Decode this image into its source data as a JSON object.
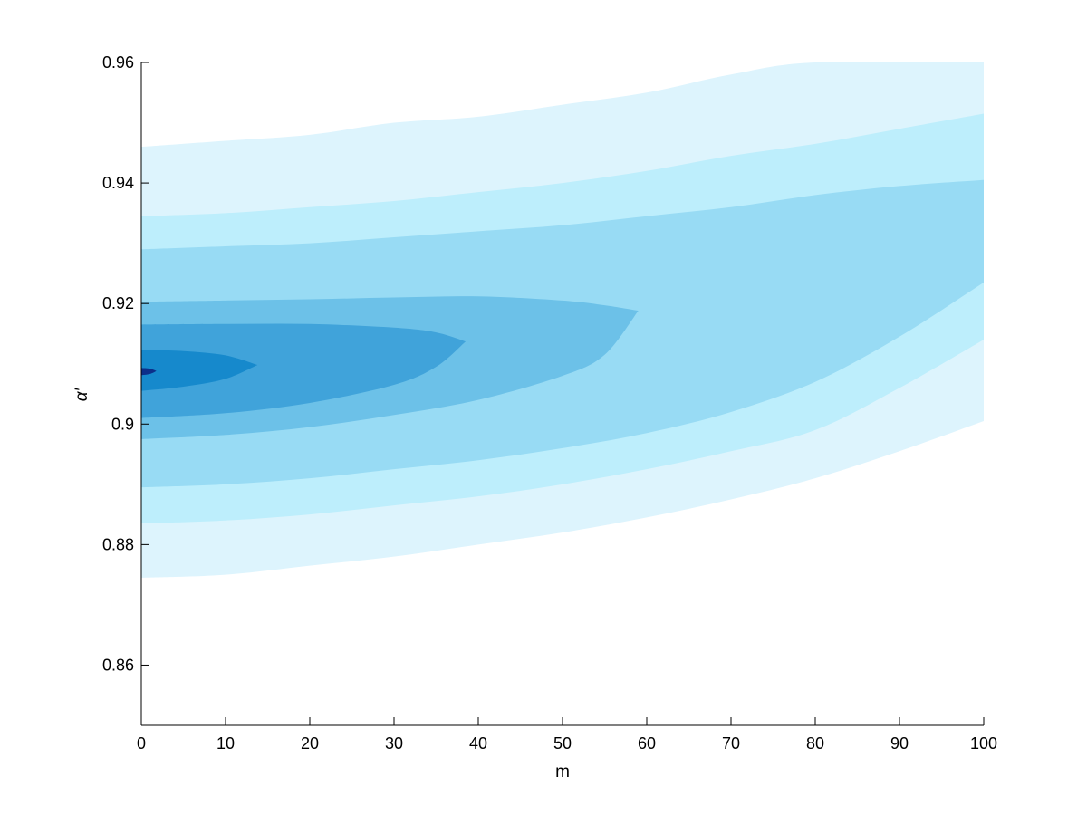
{
  "chart_data": {
    "type": "contour",
    "title": "",
    "xlabel": "m",
    "ylabel": "α′",
    "xlim": [
      0,
      100
    ],
    "ylim": [
      0.85,
      0.96
    ],
    "x_ticks": [
      0,
      10,
      20,
      30,
      40,
      50,
      60,
      70,
      80,
      90,
      100
    ],
    "y_ticks": [
      0.86,
      0.88,
      0.9,
      0.92,
      0.94,
      0.96
    ],
    "x_tick_labels": [
      "0",
      "10",
      "20",
      "30",
      "40",
      "50",
      "60",
      "70",
      "80",
      "90",
      "100"
    ],
    "y_tick_labels": [
      "0.86",
      "0.88",
      "0.9",
      "0.92",
      "0.94",
      "0.96"
    ],
    "grid": false,
    "legend": "none",
    "bands": [
      {
        "level": 1,
        "color": "#ddf4fd",
        "upper": [
          [
            0,
            0.946
          ],
          [
            10,
            0.947
          ],
          [
            20,
            0.948
          ],
          [
            30,
            0.95
          ],
          [
            40,
            0.951
          ],
          [
            50,
            0.953
          ],
          [
            60,
            0.955
          ],
          [
            70,
            0.958
          ],
          [
            80,
            0.96
          ],
          [
            100,
            0.96
          ]
        ],
        "lower": [
          [
            0,
            0.8745
          ],
          [
            10,
            0.875
          ],
          [
            20,
            0.8765
          ],
          [
            30,
            0.878
          ],
          [
            40,
            0.88
          ],
          [
            50,
            0.882
          ],
          [
            60,
            0.8845
          ],
          [
            70,
            0.8875
          ],
          [
            80,
            0.891
          ],
          [
            90,
            0.8955
          ],
          [
            100,
            0.9005
          ]
        ]
      },
      {
        "level": 2,
        "color": "#bdeefc",
        "upper": [
          [
            0,
            0.9345
          ],
          [
            10,
            0.935
          ],
          [
            20,
            0.936
          ],
          [
            30,
            0.937
          ],
          [
            40,
            0.9385
          ],
          [
            50,
            0.94
          ],
          [
            60,
            0.942
          ],
          [
            70,
            0.9445
          ],
          [
            80,
            0.9465
          ],
          [
            90,
            0.949
          ],
          [
            100,
            0.9515
          ]
        ],
        "lower": [
          [
            0,
            0.8835
          ],
          [
            10,
            0.884
          ],
          [
            20,
            0.885
          ],
          [
            30,
            0.8865
          ],
          [
            40,
            0.888
          ],
          [
            50,
            0.89
          ],
          [
            60,
            0.8925
          ],
          [
            70,
            0.8955
          ],
          [
            80,
            0.899
          ],
          [
            90,
            0.906
          ],
          [
            100,
            0.914
          ]
        ]
      },
      {
        "level": 3,
        "color": "#98dbf4",
        "upper": [
          [
            0,
            0.929
          ],
          [
            10,
            0.9295
          ],
          [
            20,
            0.93
          ],
          [
            30,
            0.931
          ],
          [
            40,
            0.932
          ],
          [
            50,
            0.933
          ],
          [
            60,
            0.9345
          ],
          [
            70,
            0.936
          ],
          [
            80,
            0.938
          ],
          [
            90,
            0.9395
          ],
          [
            100,
            0.9405
          ]
        ],
        "lower": [
          [
            0,
            0.8895
          ],
          [
            10,
            0.89
          ],
          [
            20,
            0.891
          ],
          [
            30,
            0.8925
          ],
          [
            40,
            0.894
          ],
          [
            50,
            0.896
          ],
          [
            60,
            0.8985
          ],
          [
            70,
            0.902
          ],
          [
            80,
            0.907
          ],
          [
            90,
            0.9145
          ],
          [
            100,
            0.9235
          ]
        ]
      },
      {
        "level": 4,
        "color": "#6cc1e8",
        "upper": [
          [
            0,
            0.9203
          ],
          [
            10,
            0.9205
          ],
          [
            20,
            0.9207
          ],
          [
            30,
            0.921
          ],
          [
            40,
            0.9212
          ],
          [
            50,
            0.9205
          ],
          [
            55,
            0.9197
          ],
          [
            59,
            0.9188
          ]
        ],
        "lower": [
          [
            0,
            0.8975
          ],
          [
            10,
            0.8982
          ],
          [
            20,
            0.8995
          ],
          [
            30,
            0.9015
          ],
          [
            40,
            0.904
          ],
          [
            50,
            0.908
          ],
          [
            55,
            0.9115
          ],
          [
            59,
            0.9188
          ]
        ]
      },
      {
        "level": 5,
        "color": "#40a3da",
        "upper": [
          [
            0,
            0.9165
          ],
          [
            10,
            0.9166
          ],
          [
            20,
            0.9166
          ],
          [
            30,
            0.916
          ],
          [
            35,
            0.9152
          ],
          [
            38.5,
            0.9137
          ]
        ],
        "lower": [
          [
            0,
            0.901
          ],
          [
            10,
            0.9018
          ],
          [
            20,
            0.9035
          ],
          [
            30,
            0.9065
          ],
          [
            35,
            0.9095
          ],
          [
            38.5,
            0.9137
          ]
        ]
      },
      {
        "level": 6,
        "color": "#1689cc",
        "upper": [
          [
            0,
            0.9123
          ],
          [
            5,
            0.9121
          ],
          [
            10,
            0.9114
          ],
          [
            13.8,
            0.9098
          ]
        ],
        "lower": [
          [
            0,
            0.9055
          ],
          [
            5,
            0.9062
          ],
          [
            10,
            0.9075
          ],
          [
            13.8,
            0.9098
          ]
        ]
      },
      {
        "level": 7,
        "color": "#0c2f8a",
        "upper": [
          [
            0,
            0.9093
          ],
          [
            1,
            0.9092
          ],
          [
            1.8,
            0.9088
          ]
        ],
        "lower": [
          [
            0,
            0.9081
          ],
          [
            1,
            0.9083
          ],
          [
            1.8,
            0.9088
          ]
        ]
      }
    ]
  }
}
